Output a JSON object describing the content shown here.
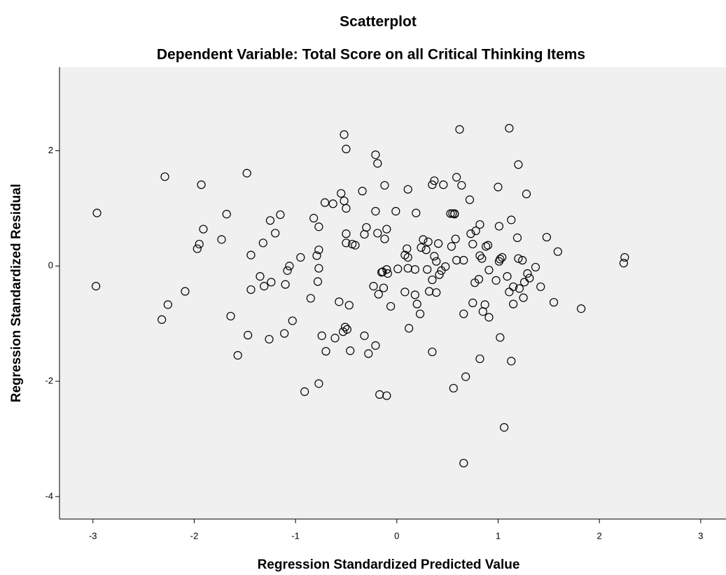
{
  "chart_data": {
    "type": "scatter",
    "title": "Scatterplot",
    "subtitle": "Dependent Variable: Total Score on all Critical Thinking Items",
    "x_label": "Regression Standardized Predicted Value",
    "y_label": "Regression Standardized Residual",
    "marker_color": "#000000",
    "plot_background": "#f0f0f0",
    "xlim": [
      -3.33,
      3.25
    ],
    "ylim": [
      -4.39,
      3.45
    ],
    "xticks": [
      -3,
      -2,
      -1,
      0,
      1,
      2,
      3
    ],
    "yticks": [
      -4,
      -2,
      0,
      2
    ],
    "x": [
      -2.96,
      -2.97,
      -2.29,
      -2.26,
      -2.32,
      -2.09,
      -1.93,
      -1.91,
      -1.95,
      -1.97,
      -1.73,
      -1.68,
      -1.64,
      -1.57,
      -1.48,
      -1.47,
      -1.44,
      -1.44,
      -1.35,
      -1.32,
      -1.31,
      -1.26,
      -1.25,
      -1.24,
      -1.2,
      -1.15,
      -1.11,
      -1.1,
      -1.08,
      -1.06,
      -1.03,
      -0.95,
      -0.91,
      -0.85,
      -0.82,
      -0.79,
      -0.77,
      -0.77,
      -0.77,
      -0.78,
      -0.77,
      -0.74,
      -0.71,
      -0.7,
      -0.63,
      -0.61,
      -0.57,
      -0.55,
      -0.53,
      -0.52,
      -0.52,
      -0.5,
      -0.5,
      -0.5,
      -0.5,
      -0.51,
      -0.49,
      -0.47,
      -0.46,
      -0.44,
      -0.41,
      -0.34,
      -0.32,
      -0.32,
      -0.3,
      -0.28,
      -0.23,
      -0.21,
      -0.21,
      -0.19,
      -0.21,
      -0.19,
      -0.18,
      -0.17,
      -0.15,
      -0.14,
      -0.13,
      -0.12,
      -0.1,
      -0.12,
      -0.1,
      -0.1,
      -0.09,
      -0.06,
      -0.01,
      0.01,
      0.08,
      0.08,
      0.1,
      0.11,
      0.11,
      0.11,
      0.12,
      0.18,
      0.19,
      0.18,
      0.2,
      0.23,
      0.24,
      0.26,
      0.29,
      0.3,
      0.32,
      0.31,
      0.35,
      0.35,
      0.35,
      0.37,
      0.37,
      0.39,
      0.39,
      0.41,
      0.42,
      0.44,
      0.46,
      0.48,
      0.53,
      0.54,
      0.55,
      0.57,
      0.57,
      0.56,
      0.58,
      0.59,
      0.59,
      0.62,
      0.64,
      0.66,
      0.66,
      0.66,
      0.68,
      0.72,
      0.73,
      0.75,
      0.75,
      0.77,
      0.78,
      0.82,
      0.81,
      0.82,
      0.82,
      0.84,
      0.85,
      0.87,
      0.88,
      0.9,
      0.91,
      0.91,
      0.98,
      1.0,
      1.01,
      1.01,
      1.02,
      1.02,
      1.04,
      1.06,
      1.09,
      1.11,
      1.11,
      1.13,
      1.13,
      1.15,
      1.15,
      1.19,
      1.2,
      1.2,
      1.21,
      1.24,
      1.26,
      1.25,
      1.28,
      1.29,
      1.31,
      1.37,
      1.42,
      1.48,
      1.55,
      1.59,
      1.82,
      2.24,
      2.25
    ],
    "values": [
      0.92,
      -0.35,
      1.55,
      -0.67,
      -0.93,
      -0.44,
      1.41,
      0.64,
      0.38,
      0.3,
      0.46,
      0.9,
      -0.87,
      -1.55,
      1.61,
      -1.2,
      0.19,
      -0.41,
      -0.18,
      0.4,
      -0.35,
      -1.27,
      0.79,
      -0.28,
      0.57,
      0.89,
      -1.17,
      -0.32,
      -0.08,
      0.0,
      -0.95,
      0.15,
      -2.18,
      -0.56,
      0.83,
      0.18,
      0.28,
      0.68,
      -0.04,
      -0.27,
      -2.04,
      -1.21,
      1.1,
      -1.48,
      1.08,
      -1.25,
      -0.62,
      1.26,
      -1.14,
      1.13,
      2.28,
      2.03,
      1.0,
      0.4,
      0.56,
      -1.06,
      -1.1,
      -0.68,
      -1.47,
      0.38,
      0.36,
      1.3,
      -1.21,
      0.55,
      0.67,
      -1.52,
      -0.35,
      -1.38,
      1.93,
      1.78,
      0.95,
      0.57,
      -0.49,
      -2.23,
      -0.11,
      -0.1,
      -0.38,
      1.4,
      -2.25,
      0.47,
      0.64,
      -0.06,
      -0.13,
      -0.7,
      0.95,
      -0.05,
      0.19,
      -0.45,
      0.3,
      1.33,
      -0.04,
      0.15,
      -1.08,
      -0.06,
      0.92,
      -0.5,
      -0.66,
      -0.83,
      0.32,
      0.46,
      0.28,
      -0.06,
      -0.44,
      0.42,
      1.41,
      -0.24,
      -1.49,
      1.48,
      0.17,
      -0.46,
      0.08,
      0.39,
      -0.15,
      -0.08,
      1.41,
      -0.01,
      0.91,
      0.34,
      0.91,
      0.9,
      0.91,
      -2.12,
      0.47,
      1.54,
      0.1,
      2.37,
      1.4,
      -0.83,
      0.1,
      -3.42,
      -1.92,
      1.15,
      0.56,
      0.38,
      -0.64,
      -0.29,
      0.61,
      -1.61,
      -0.23,
      0.72,
      0.18,
      0.13,
      -0.79,
      -0.67,
      0.34,
      0.36,
      -0.89,
      -0.07,
      -0.25,
      1.37,
      0.69,
      0.08,
      -1.24,
      0.12,
      0.15,
      -2.8,
      -0.18,
      -0.45,
      2.39,
      0.8,
      -1.65,
      -0.36,
      -0.66,
      0.49,
      1.76,
      0.13,
      -0.39,
      0.1,
      -0.28,
      -0.55,
      1.25,
      -0.13,
      -0.21,
      -0.02,
      -0.36,
      0.5,
      -0.63,
      0.25,
      -0.74,
      0.05,
      0.15
    ]
  }
}
